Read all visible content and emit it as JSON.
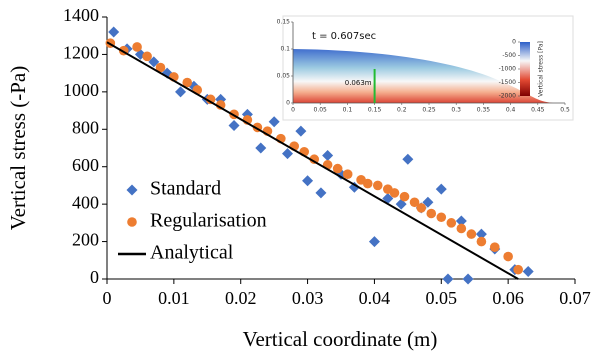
{
  "chart_data": [
    {
      "type": "scatter",
      "xlabel": "Vertical coordinate (m)",
      "ylabel": "Vertical stress (-Pa)",
      "xlim": [
        0,
        0.07
      ],
      "xticks": [
        0,
        0.01,
        0.02,
        0.03,
        0.04,
        0.05,
        0.06,
        0.07
      ],
      "ylim": [
        0,
        1400
      ],
      "yticks": [
        0,
        200,
        400,
        600,
        800,
        1000,
        1200,
        1400
      ],
      "legend": "lower left",
      "series": [
        {
          "name": "Standard",
          "color": "#4472c4",
          "marker": "diamond",
          "x": [
            0.001,
            0.003,
            0.005,
            0.007,
            0.009,
            0.011,
            0.013,
            0.015,
            0.017,
            0.019,
            0.021,
            0.023,
            0.025,
            0.027,
            0.029,
            0.03,
            0.032,
            0.033,
            0.035,
            0.037,
            0.04,
            0.042,
            0.044,
            0.045,
            0.047,
            0.048,
            0.05,
            0.051,
            0.053,
            0.054,
            0.056,
            0.058,
            0.061,
            0.063
          ],
          "values": [
            1320,
            1230,
            1200,
            1160,
            1100,
            1000,
            1030,
            960,
            960,
            820,
            880,
            700,
            840,
            670,
            790,
            525,
            460,
            660,
            560,
            490,
            200,
            430,
            400,
            640,
            380,
            410,
            480,
            0,
            310,
            0,
            240,
            160,
            50,
            40
          ]
        },
        {
          "name": "Regularisation",
          "color": "#ed7d31",
          "marker": "circle",
          "x": [
            0.0005,
            0.0025,
            0.0045,
            0.006,
            0.008,
            0.01,
            0.012,
            0.0135,
            0.0155,
            0.017,
            0.019,
            0.021,
            0.0225,
            0.024,
            0.026,
            0.028,
            0.0295,
            0.031,
            0.033,
            0.0345,
            0.036,
            0.038,
            0.039,
            0.0405,
            0.042,
            0.043,
            0.0445,
            0.046,
            0.047,
            0.0485,
            0.05,
            0.0515,
            0.053,
            0.0545,
            0.056,
            0.058,
            0.06,
            0.0615
          ],
          "values": [
            1260,
            1220,
            1240,
            1190,
            1130,
            1080,
            1050,
            1010,
            960,
            930,
            880,
            850,
            810,
            790,
            750,
            710,
            680,
            640,
            610,
            590,
            560,
            530,
            510,
            500,
            480,
            460,
            440,
            410,
            380,
            350,
            330,
            300,
            270,
            240,
            200,
            170,
            120,
            50
          ]
        },
        {
          "name": "Analytical",
          "color": "#000000",
          "marker": "line",
          "x": [
            0,
            0.0615
          ],
          "values": [
            1265,
            0
          ]
        }
      ]
    },
    {
      "type": "inset",
      "annotation": "t = 0.607sec",
      "xlim": [
        0,
        0.5
      ],
      "xticks": [
        0,
        0.05,
        0.1,
        0.15,
        0.2,
        0.25,
        0.3,
        0.35,
        0.4,
        0.45,
        0.5
      ],
      "ylim": [
        0,
        0.15
      ],
      "yticks": [
        0,
        0.05,
        0.1,
        0.15
      ],
      "colorbar_label": "Vertical stress [Pa]",
      "colorbar_ticks": [
        0,
        -500,
        -1000,
        -1500,
        -2000
      ],
      "marker": {
        "x": 0.15,
        "height": 0.063,
        "label": "0.063m",
        "color": "#22bb33"
      }
    }
  ]
}
